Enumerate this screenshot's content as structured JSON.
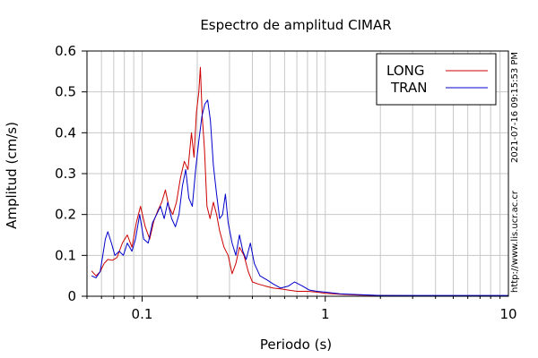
{
  "chart_data": {
    "type": "line",
    "title": "Espectro de amplitud CIMAR",
    "xlabel": "Periodo (s)",
    "ylabel": "Amplitud (cm/s)",
    "x_scale": "log",
    "xlim": [
      0.05,
      10
    ],
    "ylim": [
      0,
      0.6
    ],
    "grid": true,
    "legend_position": "top-right",
    "x_ticks": [
      {
        "value": 0.1,
        "label": "0.1"
      },
      {
        "value": 1,
        "label": "1"
      },
      {
        "value": 10,
        "label": "10"
      }
    ],
    "y_ticks": [
      {
        "value": 0,
        "label": "0"
      },
      {
        "value": 0.1,
        "label": "0.1"
      },
      {
        "value": 0.2,
        "label": "0.2"
      },
      {
        "value": 0.3,
        "label": "0.3"
      },
      {
        "value": 0.4,
        "label": "0.4"
      },
      {
        "value": 0.5,
        "label": "0.5"
      },
      {
        "value": 0.6,
        "label": "0.6"
      }
    ],
    "series": [
      {
        "name": "LONG",
        "color": "#cc0000",
        "points": [
          [
            0.053,
            0.062
          ],
          [
            0.056,
            0.05
          ],
          [
            0.059,
            0.06
          ],
          [
            0.062,
            0.08
          ],
          [
            0.065,
            0.09
          ],
          [
            0.069,
            0.088
          ],
          [
            0.073,
            0.095
          ],
          [
            0.078,
            0.13
          ],
          [
            0.083,
            0.15
          ],
          [
            0.088,
            0.12
          ],
          [
            0.093,
            0.18
          ],
          [
            0.098,
            0.22
          ],
          [
            0.104,
            0.17
          ],
          [
            0.11,
            0.14
          ],
          [
            0.116,
            0.185
          ],
          [
            0.122,
            0.21
          ],
          [
            0.128,
            0.23
          ],
          [
            0.134,
            0.26
          ],
          [
            0.14,
            0.22
          ],
          [
            0.147,
            0.2
          ],
          [
            0.154,
            0.23
          ],
          [
            0.162,
            0.29
          ],
          [
            0.17,
            0.33
          ],
          [
            0.178,
            0.31
          ],
          [
            0.186,
            0.4
          ],
          [
            0.192,
            0.34
          ],
          [
            0.198,
            0.45
          ],
          [
            0.204,
            0.5
          ],
          [
            0.208,
            0.56
          ],
          [
            0.213,
            0.44
          ],
          [
            0.219,
            0.36
          ],
          [
            0.226,
            0.22
          ],
          [
            0.235,
            0.19
          ],
          [
            0.245,
            0.23
          ],
          [
            0.255,
            0.2
          ],
          [
            0.265,
            0.16
          ],
          [
            0.28,
            0.12
          ],
          [
            0.295,
            0.1
          ],
          [
            0.31,
            0.055
          ],
          [
            0.325,
            0.08
          ],
          [
            0.34,
            0.12
          ],
          [
            0.36,
            0.1
          ],
          [
            0.38,
            0.06
          ],
          [
            0.4,
            0.035
          ],
          [
            0.43,
            0.03
          ],
          [
            0.47,
            0.025
          ],
          [
            0.52,
            0.02
          ],
          [
            0.57,
            0.018
          ],
          [
            0.63,
            0.015
          ],
          [
            0.7,
            0.012
          ],
          [
            0.8,
            0.012
          ],
          [
            0.9,
            0.01
          ],
          [
            1.0,
            0.007
          ],
          [
            1.2,
            0.005
          ],
          [
            1.5,
            0.003
          ],
          [
            2.0,
            0.002
          ],
          [
            3.0,
            0.001
          ],
          [
            5.0,
            0.001
          ],
          [
            7.0,
            0.001
          ],
          [
            10.0,
            0.001
          ]
        ]
      },
      {
        "name": "TRAN",
        "color": "#0000cc",
        "points": [
          [
            0.053,
            0.05
          ],
          [
            0.056,
            0.045
          ],
          [
            0.059,
            0.06
          ],
          [
            0.061,
            0.1
          ],
          [
            0.063,
            0.14
          ],
          [
            0.065,
            0.158
          ],
          [
            0.068,
            0.13
          ],
          [
            0.071,
            0.1
          ],
          [
            0.075,
            0.11
          ],
          [
            0.079,
            0.1
          ],
          [
            0.083,
            0.13
          ],
          [
            0.088,
            0.11
          ],
          [
            0.092,
            0.14
          ],
          [
            0.097,
            0.2
          ],
          [
            0.102,
            0.14
          ],
          [
            0.108,
            0.13
          ],
          [
            0.114,
            0.18
          ],
          [
            0.12,
            0.2
          ],
          [
            0.126,
            0.22
          ],
          [
            0.132,
            0.19
          ],
          [
            0.138,
            0.23
          ],
          [
            0.145,
            0.19
          ],
          [
            0.152,
            0.17
          ],
          [
            0.159,
            0.2
          ],
          [
            0.166,
            0.27
          ],
          [
            0.173,
            0.31
          ],
          [
            0.18,
            0.24
          ],
          [
            0.188,
            0.22
          ],
          [
            0.196,
            0.31
          ],
          [
            0.204,
            0.38
          ],
          [
            0.212,
            0.44
          ],
          [
            0.22,
            0.47
          ],
          [
            0.228,
            0.48
          ],
          [
            0.236,
            0.43
          ],
          [
            0.245,
            0.32
          ],
          [
            0.255,
            0.25
          ],
          [
            0.265,
            0.19
          ],
          [
            0.275,
            0.2
          ],
          [
            0.285,
            0.25
          ],
          [
            0.295,
            0.18
          ],
          [
            0.31,
            0.13
          ],
          [
            0.325,
            0.1
          ],
          [
            0.34,
            0.15
          ],
          [
            0.355,
            0.11
          ],
          [
            0.37,
            0.09
          ],
          [
            0.39,
            0.13
          ],
          [
            0.41,
            0.08
          ],
          [
            0.44,
            0.05
          ],
          [
            0.48,
            0.04
          ],
          [
            0.52,
            0.03
          ],
          [
            0.57,
            0.02
          ],
          [
            0.63,
            0.025
          ],
          [
            0.68,
            0.035
          ],
          [
            0.75,
            0.025
          ],
          [
            0.82,
            0.015
          ],
          [
            0.9,
            0.012
          ],
          [
            1.0,
            0.01
          ],
          [
            1.2,
            0.006
          ],
          [
            1.5,
            0.004
          ],
          [
            2.0,
            0.002
          ],
          [
            3.0,
            0.002
          ],
          [
            4.0,
            0.002
          ],
          [
            5.0,
            0.002
          ],
          [
            7.0,
            0.002
          ],
          [
            10.0,
            0.002
          ]
        ]
      }
    ]
  },
  "side_text": {
    "timestamp": "2021-07-16 09:15:53 PM",
    "url": "http://www.lis.ucr.ac.cr"
  }
}
